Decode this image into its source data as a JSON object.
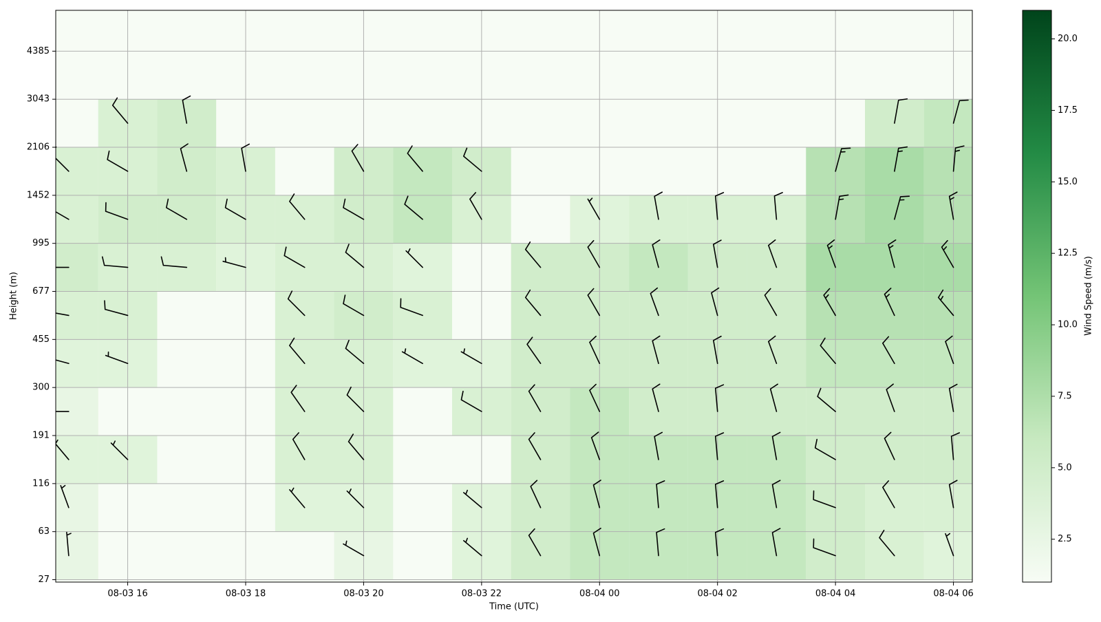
{
  "chart_data": {
    "type": "barbs",
    "xlabel": "Time (UTC)",
    "ylabel": "Height (m)",
    "colorbar_label": "Wind Speed (m/s)",
    "xlim": [
      14.78,
      30.32
    ],
    "xticks": [
      {
        "value": 16,
        "label": "08-03 16"
      },
      {
        "value": 18,
        "label": "08-03 18"
      },
      {
        "value": 20,
        "label": "08-03 20"
      },
      {
        "value": 22,
        "label": "08-03 22"
      },
      {
        "value": 24,
        "label": "08-04 00"
      },
      {
        "value": 26,
        "label": "08-04 02"
      },
      {
        "value": 28,
        "label": "08-04 04"
      },
      {
        "value": 30,
        "label": "08-04 06"
      }
    ],
    "ylim": [
      -0.05,
      11.85
    ],
    "yticks": [
      {
        "value": 0,
        "label": "27"
      },
      {
        "value": 1,
        "label": "63"
      },
      {
        "value": 2,
        "label": "116"
      },
      {
        "value": 3,
        "label": "191"
      },
      {
        "value": 4,
        "label": "300"
      },
      {
        "value": 5,
        "label": "455"
      },
      {
        "value": 6,
        "label": "677"
      },
      {
        "value": 7,
        "label": "995"
      },
      {
        "value": 8,
        "label": "1452"
      },
      {
        "value": 9,
        "label": "2106"
      },
      {
        "value": 10,
        "label": "3043"
      },
      {
        "value": 11,
        "label": "4385"
      }
    ],
    "grid": true,
    "colormap": "Greens",
    "clim": [
      1.0,
      21.0
    ],
    "cticks": [
      {
        "value": 2.5,
        "label": "2.5"
      },
      {
        "value": 5,
        "label": "5.0"
      },
      {
        "value": 7.5,
        "label": "7.5"
      },
      {
        "value": 10,
        "label": "10.0"
      },
      {
        "value": 12.5,
        "label": "12.5"
      },
      {
        "value": 15,
        "label": "15.0"
      },
      {
        "value": 17.5,
        "label": "17.5"
      },
      {
        "value": 20,
        "label": "20.0"
      }
    ],
    "barbs": {
      "x": [
        15,
        16,
        17,
        18,
        19,
        20,
        21,
        22,
        23,
        24,
        25,
        26,
        27,
        28,
        29,
        30
      ],
      "levels": [
        0.5,
        1.5,
        2.5,
        3.5,
        4.5,
        5.5,
        6.5,
        7.5,
        8.5,
        9.5
      ],
      "speed": [
        [
          3,
          null,
          null,
          null,
          null,
          3,
          null,
          4,
          6,
          7,
          7,
          7,
          7,
          6,
          5,
          4
        ],
        [
          3,
          null,
          null,
          null,
          4,
          4,
          null,
          4,
          6,
          7,
          7,
          7,
          7,
          6,
          5,
          5
        ],
        [
          4,
          4,
          null,
          null,
          5,
          5,
          null,
          null,
          6,
          7,
          7,
          7,
          7,
          6,
          6,
          6
        ],
        [
          3,
          null,
          null,
          null,
          5,
          5,
          null,
          5,
          6,
          7,
          6,
          6,
          6,
          6,
          6,
          6
        ],
        [
          4,
          4,
          null,
          null,
          5,
          5,
          4,
          4,
          6,
          6,
          6,
          6,
          6,
          7,
          7,
          7
        ],
        [
          5,
          5,
          null,
          null,
          5,
          6,
          5,
          null,
          6,
          6,
          6,
          6,
          6,
          8,
          8,
          8
        ],
        [
          6,
          5,
          5,
          4,
          5,
          5,
          4,
          null,
          6,
          6,
          7,
          6,
          6,
          9,
          9,
          9
        ],
        [
          5,
          6,
          6,
          5,
          5,
          6,
          7,
          5,
          null,
          4,
          5,
          5,
          5,
          8,
          9,
          8
        ],
        [
          5,
          5,
          6,
          5,
          null,
          6,
          7,
          6,
          null,
          null,
          null,
          null,
          null,
          8,
          9,
          8
        ],
        [
          null,
          5,
          6,
          null,
          null,
          null,
          null,
          null,
          null,
          null,
          null,
          null,
          null,
          null,
          6,
          7
        ]
      ],
      "direction": [
        [
          355,
          null,
          null,
          null,
          null,
          300,
          null,
          310,
          330,
          345,
          355,
          355,
          350,
          290,
          320,
          340
        ],
        [
          340,
          null,
          null,
          null,
          320,
          315,
          null,
          310,
          335,
          345,
          355,
          355,
          350,
          290,
          330,
          350
        ],
        [
          320,
          315,
          null,
          null,
          330,
          320,
          null,
          null,
          330,
          340,
          350,
          355,
          350,
          300,
          335,
          355
        ],
        [
          270,
          null,
          null,
          null,
          325,
          315,
          null,
          300,
          330,
          335,
          345,
          355,
          345,
          310,
          340,
          350
        ],
        [
          285,
          290,
          null,
          null,
          320,
          310,
          300,
          300,
          325,
          335,
          345,
          350,
          340,
          320,
          330,
          340
        ],
        [
          280,
          285,
          null,
          null,
          315,
          300,
          290,
          null,
          320,
          330,
          340,
          345,
          330,
          330,
          335,
          320
        ],
        [
          270,
          275,
          275,
          285,
          300,
          310,
          315,
          null,
          320,
          330,
          345,
          350,
          340,
          340,
          345,
          330
        ],
        [
          300,
          290,
          300,
          300,
          320,
          300,
          310,
          330,
          null,
          330,
          350,
          355,
          355,
          10,
          15,
          350
        ],
        [
          315,
          300,
          345,
          350,
          null,
          330,
          320,
          310,
          null,
          null,
          null,
          null,
          null,
          15,
          10,
          5
        ],
        [
          null,
          320,
          350,
          null,
          null,
          null,
          null,
          null,
          null,
          null,
          null,
          null,
          null,
          null,
          10,
          15
        ]
      ]
    }
  }
}
